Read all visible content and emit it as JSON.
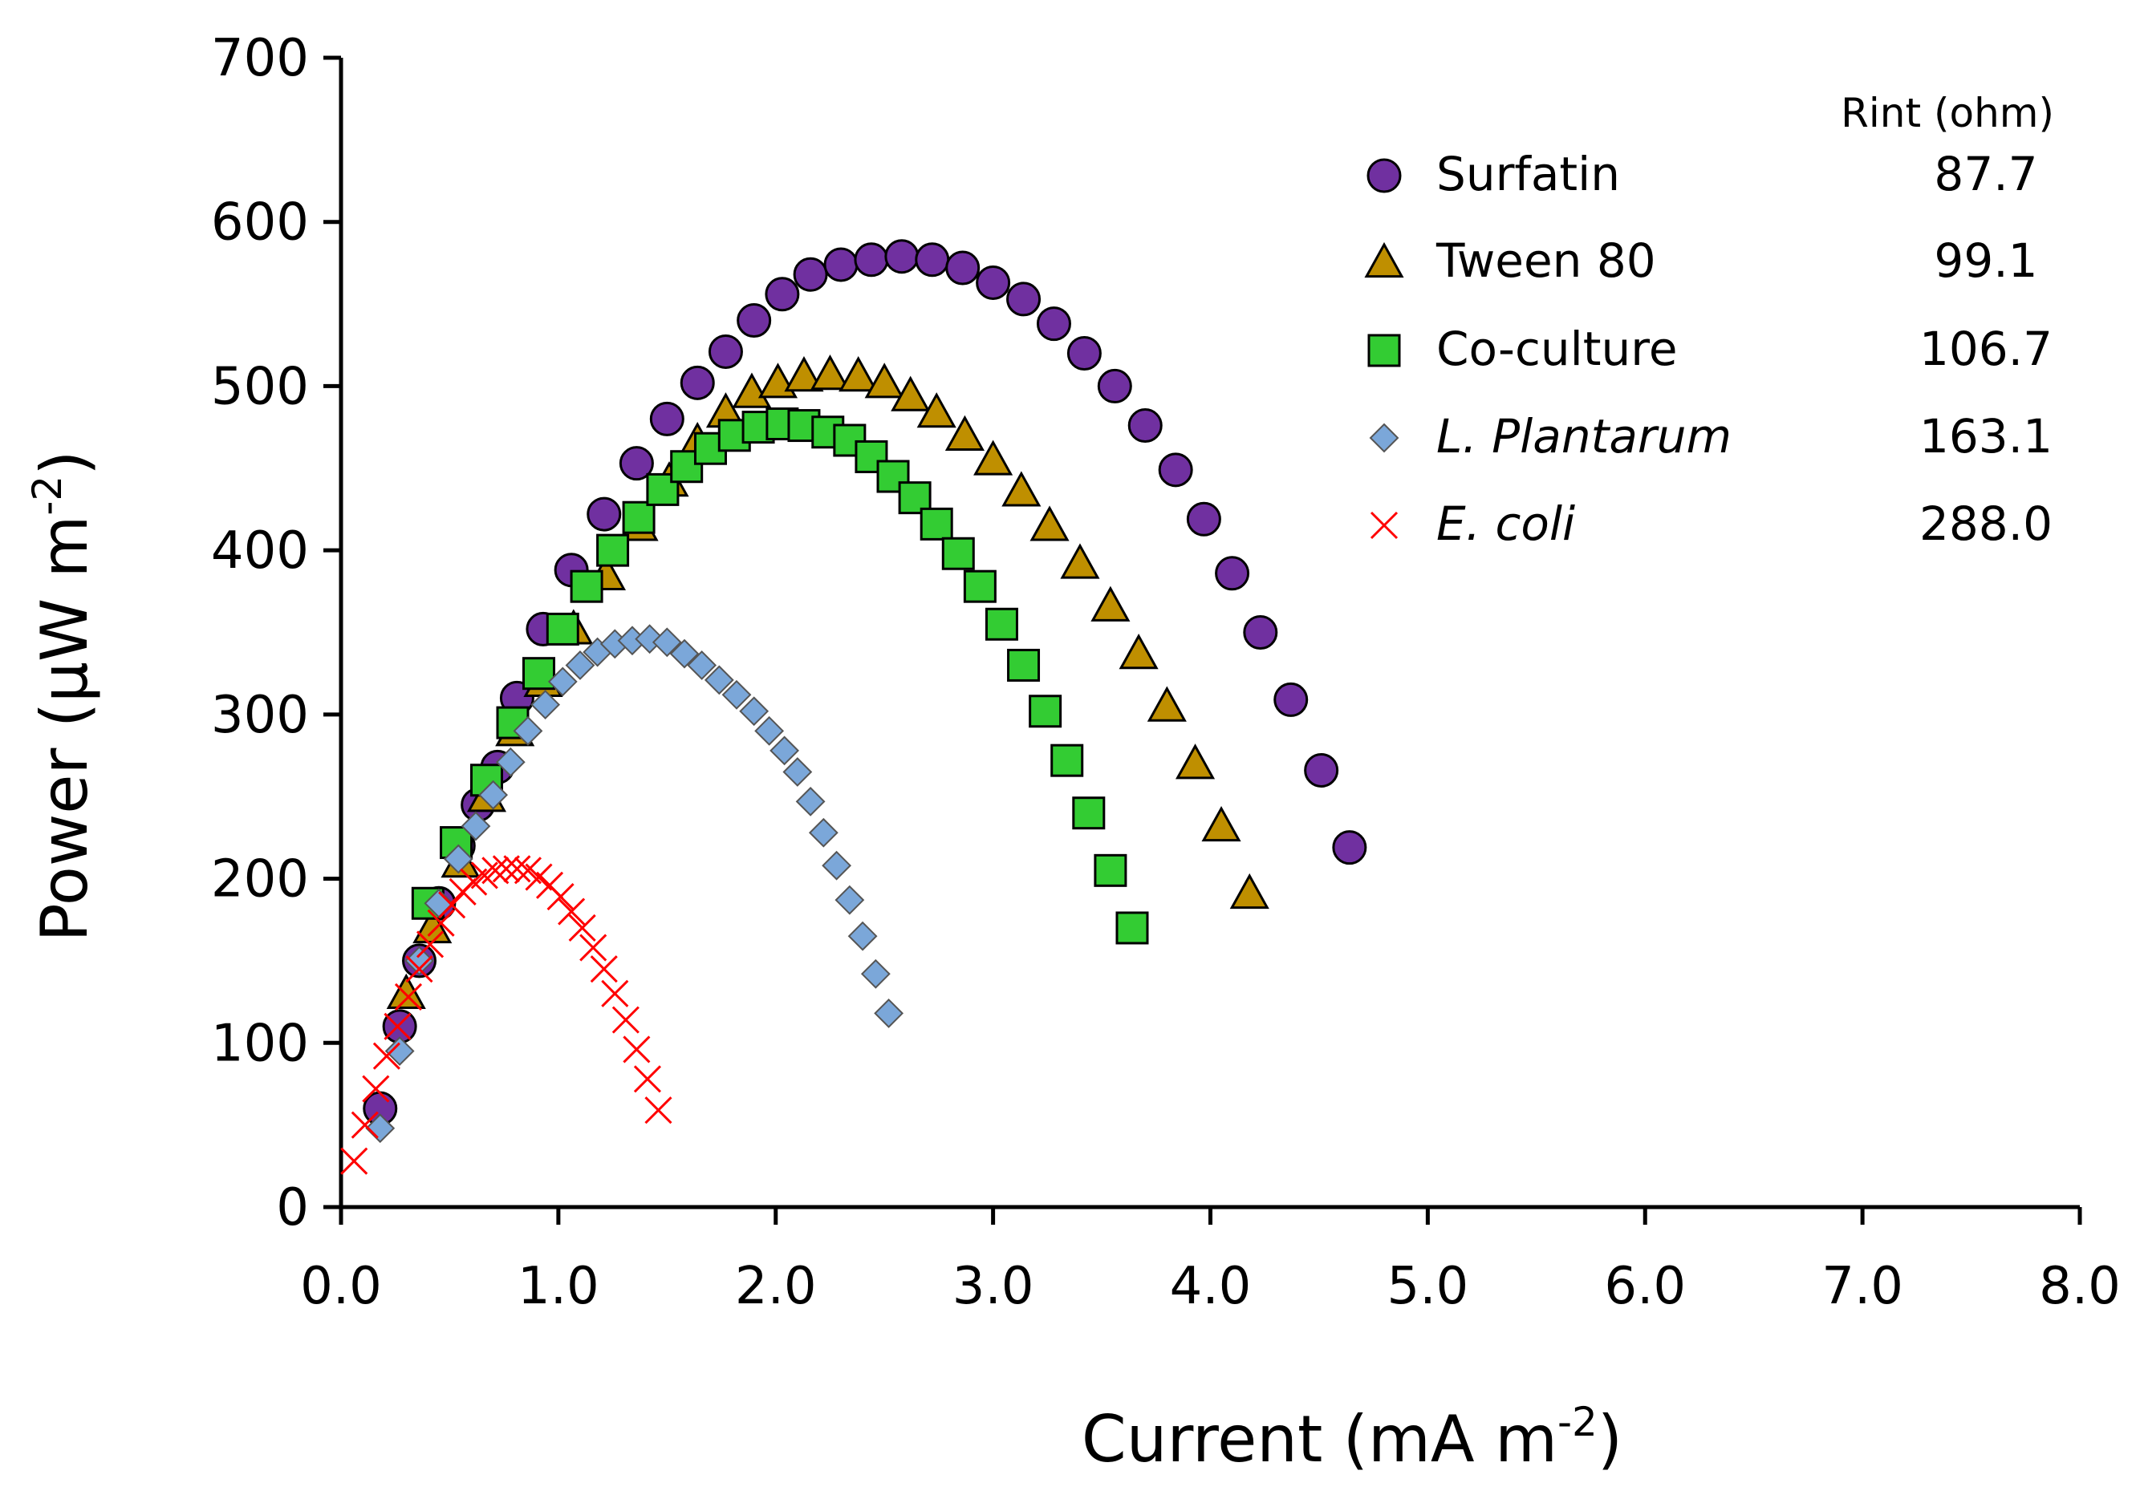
{
  "chart_data": {
    "type": "scatter",
    "xlabel": "Current (mA m",
    "xlabel_sup": "-2",
    "xlabel_end": ")",
    "ylabel": "Power (μW m",
    "ylabel_sup": "-2",
    "ylabel_end": ")",
    "xlim": [
      0,
      8
    ],
    "ylim": [
      0,
      700
    ],
    "x_ticks": [
      "0.0",
      "1.0",
      "2.0",
      "3.0",
      "4.0",
      "5.0",
      "6.0",
      "7.0",
      "8.0"
    ],
    "y_ticks": [
      "0",
      "100",
      "200",
      "300",
      "400",
      "500",
      "600",
      "700"
    ],
    "grid": false,
    "legend_position": "top-right",
    "legend_header": "Rint (ohm)",
    "series": [
      {
        "name": "Surfatin",
        "italic": false,
        "rint": "87.7",
        "marker": "circle",
        "fill": "#7030A0",
        "points": [
          [
            0.18,
            60
          ],
          [
            0.27,
            110
          ],
          [
            0.36,
            150
          ],
          [
            0.45,
            185
          ],
          [
            0.54,
            220
          ],
          [
            0.63,
            245
          ],
          [
            0.72,
            268
          ],
          [
            0.81,
            310
          ],
          [
            0.93,
            352
          ],
          [
            1.06,
            388
          ],
          [
            1.21,
            422
          ],
          [
            1.36,
            453
          ],
          [
            1.5,
            480
          ],
          [
            1.64,
            502
          ],
          [
            1.77,
            521
          ],
          [
            1.9,
            540
          ],
          [
            2.03,
            556
          ],
          [
            2.16,
            568
          ],
          [
            2.3,
            574
          ],
          [
            2.44,
            577
          ],
          [
            2.58,
            579
          ],
          [
            2.72,
            577
          ],
          [
            2.86,
            572
          ],
          [
            3.0,
            563
          ],
          [
            3.14,
            553
          ],
          [
            3.28,
            538
          ],
          [
            3.42,
            520
          ],
          [
            3.56,
            500
          ],
          [
            3.7,
            476
          ],
          [
            3.84,
            449
          ],
          [
            3.97,
            419
          ],
          [
            4.1,
            386
          ],
          [
            4.23,
            350
          ],
          [
            4.37,
            309
          ],
          [
            4.51,
            266
          ],
          [
            4.64,
            219
          ]
        ]
      },
      {
        "name": "Tween 80",
        "italic": false,
        "rint": "99.1",
        "marker": "triangle",
        "fill": "#BF8F00",
        "points": [
          [
            0.3,
            130
          ],
          [
            0.42,
            170
          ],
          [
            0.55,
            210
          ],
          [
            0.67,
            250
          ],
          [
            0.8,
            290
          ],
          [
            0.93,
            320
          ],
          [
            1.07,
            352
          ],
          [
            1.22,
            385
          ],
          [
            1.37,
            415
          ],
          [
            1.51,
            442
          ],
          [
            1.64,
            466
          ],
          [
            1.77,
            484
          ],
          [
            1.89,
            496
          ],
          [
            2.01,
            502
          ],
          [
            2.13,
            506
          ],
          [
            2.25,
            507
          ],
          [
            2.38,
            506
          ],
          [
            2.5,
            502
          ],
          [
            2.62,
            494
          ],
          [
            2.74,
            484
          ],
          [
            2.87,
            470
          ],
          [
            3.0,
            455
          ],
          [
            3.13,
            436
          ],
          [
            3.26,
            415
          ],
          [
            3.4,
            392
          ],
          [
            3.54,
            366
          ],
          [
            3.67,
            337
          ],
          [
            3.8,
            305
          ],
          [
            3.93,
            270
          ],
          [
            4.05,
            232
          ],
          [
            4.18,
            191
          ]
        ]
      },
      {
        "name": "Co-culture",
        "italic": false,
        "rint": "106.7",
        "marker": "square",
        "fill": "#33CC33",
        "points": [
          [
            0.4,
            185
          ],
          [
            0.53,
            222
          ],
          [
            0.67,
            260
          ],
          [
            0.79,
            295
          ],
          [
            0.91,
            325
          ],
          [
            1.02,
            352
          ],
          [
            1.13,
            378
          ],
          [
            1.25,
            400
          ],
          [
            1.37,
            420
          ],
          [
            1.48,
            437
          ],
          [
            1.59,
            451
          ],
          [
            1.7,
            462
          ],
          [
            1.81,
            470
          ],
          [
            1.92,
            475
          ],
          [
            2.03,
            477
          ],
          [
            2.13,
            476
          ],
          [
            2.24,
            472
          ],
          [
            2.34,
            467
          ],
          [
            2.44,
            457
          ],
          [
            2.54,
            445
          ],
          [
            2.64,
            432
          ],
          [
            2.74,
            416
          ],
          [
            2.84,
            398
          ],
          [
            2.94,
            378
          ],
          [
            3.04,
            355
          ],
          [
            3.14,
            330
          ],
          [
            3.24,
            302
          ],
          [
            3.34,
            272
          ],
          [
            3.44,
            240
          ],
          [
            3.54,
            205
          ],
          [
            3.64,
            170
          ]
        ]
      },
      {
        "name": "L. Plantarum",
        "italic": true,
        "rint": "163.1",
        "marker": "diamond",
        "fill": "#7BA7D9",
        "points": [
          [
            0.18,
            48
          ],
          [
            0.27,
            95
          ],
          [
            0.36,
            150
          ],
          [
            0.45,
            185
          ],
          [
            0.54,
            212
          ],
          [
            0.62,
            232
          ],
          [
            0.7,
            251
          ],
          [
            0.78,
            271
          ],
          [
            0.86,
            290
          ],
          [
            0.94,
            306
          ],
          [
            1.02,
            320
          ],
          [
            1.1,
            330
          ],
          [
            1.18,
            338
          ],
          [
            1.26,
            343
          ],
          [
            1.34,
            345
          ],
          [
            1.42,
            346
          ],
          [
            1.5,
            344
          ],
          [
            1.58,
            337
          ],
          [
            1.66,
            330
          ],
          [
            1.74,
            321
          ],
          [
            1.82,
            312
          ],
          [
            1.9,
            302
          ],
          [
            1.97,
            290
          ],
          [
            2.04,
            278
          ],
          [
            2.1,
            265
          ],
          [
            2.16,
            247
          ],
          [
            2.22,
            228
          ],
          [
            2.28,
            208
          ],
          [
            2.34,
            187
          ],
          [
            2.4,
            165
          ],
          [
            2.46,
            142
          ],
          [
            2.52,
            118
          ]
        ]
      },
      {
        "name": "E. coli",
        "italic": true,
        "rint": "288.0",
        "marker": "x",
        "fill": "#FF0000",
        "points": [
          [
            0.06,
            28
          ],
          [
            0.11,
            50
          ],
          [
            0.16,
            72
          ],
          [
            0.21,
            92
          ],
          [
            0.26,
            110
          ],
          [
            0.31,
            128
          ],
          [
            0.36,
            145
          ],
          [
            0.41,
            160
          ],
          [
            0.46,
            173
          ],
          [
            0.51,
            184
          ],
          [
            0.56,
            192
          ],
          [
            0.61,
            198
          ],
          [
            0.66,
            202
          ],
          [
            0.71,
            205
          ],
          [
            0.76,
            206
          ],
          [
            0.81,
            206
          ],
          [
            0.86,
            205
          ],
          [
            0.91,
            201
          ],
          [
            0.96,
            196
          ],
          [
            1.01,
            189
          ],
          [
            1.06,
            180
          ],
          [
            1.11,
            170
          ],
          [
            1.16,
            158
          ],
          [
            1.21,
            145
          ],
          [
            1.26,
            130
          ],
          [
            1.31,
            114
          ],
          [
            1.36,
            96
          ],
          [
            1.41,
            78
          ],
          [
            1.46,
            59
          ]
        ]
      }
    ]
  }
}
